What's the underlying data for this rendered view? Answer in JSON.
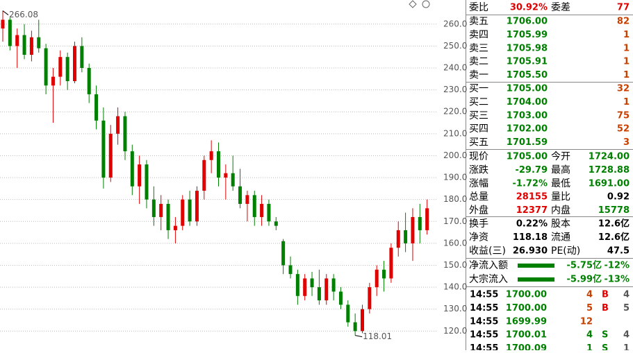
{
  "chart_data": {
    "type": "candlestick",
    "ylim": [
      116,
      271
    ],
    "yticks": [
      {
        "value": 120,
        "label": "120.0"
      },
      {
        "value": 130,
        "label": "130.0"
      },
      {
        "value": 140,
        "label": "140.0"
      },
      {
        "value": 150,
        "label": "150.0"
      },
      {
        "value": 160,
        "label": "160.0"
      },
      {
        "value": 170,
        "label": "170.0"
      },
      {
        "value": 180,
        "label": "180.0"
      },
      {
        "value": 190,
        "label": "190.0"
      },
      {
        "value": 200,
        "label": "200.0"
      },
      {
        "value": 210,
        "label": "210.0"
      },
      {
        "value": 220,
        "label": "220.0"
      },
      {
        "value": 230,
        "label": "230.0"
      },
      {
        "value": 240,
        "label": "240.0"
      },
      {
        "value": 250,
        "label": "250.0"
      },
      {
        "value": 260,
        "label": "260.0"
      }
    ],
    "grid": true,
    "up_color": "#e00000",
    "down_color": "#008000",
    "annotations": [
      "266.08",
      "118.01"
    ],
    "candles": [
      [
        258,
        266.08,
        252,
        262
      ],
      [
        262,
        263,
        248,
        250
      ],
      [
        250,
        258,
        240,
        255
      ],
      [
        255,
        260,
        244,
        246
      ],
      [
        246,
        257,
        243,
        254
      ],
      [
        254,
        262,
        247,
        249
      ],
      [
        249,
        251,
        228,
        232
      ],
      [
        232,
        240,
        215,
        236
      ],
      [
        236,
        248,
        232,
        245
      ],
      [
        245,
        247,
        230,
        234
      ],
      [
        234,
        252,
        233,
        250
      ],
      [
        250,
        254,
        238,
        240
      ],
      [
        240,
        242,
        224,
        228
      ],
      [
        228,
        232,
        212,
        216
      ],
      [
        216,
        222,
        185,
        190
      ],
      [
        190,
        214,
        188,
        210
      ],
      [
        210,
        222,
        205,
        218
      ],
      [
        218,
        220,
        198,
        202
      ],
      [
        202,
        205,
        182,
        186
      ],
      [
        186,
        200,
        178,
        196
      ],
      [
        196,
        198,
        176,
        180
      ],
      [
        180,
        186,
        168,
        172
      ],
      [
        172,
        182,
        166,
        178
      ],
      [
        178,
        180,
        162,
        166
      ],
      [
        166,
        172,
        160,
        168
      ],
      [
        168,
        182,
        166,
        180
      ],
      [
        180,
        184,
        168,
        170
      ],
      [
        170,
        186,
        168,
        184
      ],
      [
        184,
        200,
        180,
        198
      ],
      [
        198,
        207,
        192,
        202
      ],
      [
        202,
        206,
        186,
        190
      ],
      [
        190,
        196,
        180,
        192
      ],
      [
        192,
        200,
        184,
        186
      ],
      [
        186,
        194,
        176,
        178
      ],
      [
        178,
        184,
        170,
        182
      ],
      [
        182,
        184,
        168,
        172
      ],
      [
        172,
        182,
        168,
        178
      ],
      [
        178,
        180,
        168,
        170
      ],
      [
        170,
        172,
        166,
        168
      ],
      [
        161,
        162,
        146,
        150
      ],
      [
        150,
        154,
        144,
        146
      ],
      [
        146,
        148,
        132,
        136
      ],
      [
        136,
        146,
        134,
        144
      ],
      [
        144,
        147,
        136,
        140
      ],
      [
        140,
        148,
        132,
        134
      ],
      [
        134,
        146,
        132,
        144
      ],
      [
        144,
        146,
        134,
        138
      ],
      [
        138,
        140,
        130,
        132
      ],
      [
        132,
        134,
        122,
        124
      ],
      [
        124,
        128,
        118.01,
        120
      ],
      [
        120,
        132,
        119,
        130
      ],
      [
        130,
        142,
        128,
        140
      ],
      [
        140,
        150,
        136,
        148
      ],
      [
        148,
        152,
        138,
        144
      ],
      [
        144,
        160,
        142,
        158
      ],
      [
        158,
        170,
        154,
        166
      ],
      [
        166,
        174,
        156,
        160
      ],
      [
        160,
        176,
        152,
        172
      ],
      [
        172,
        178,
        160,
        166
      ],
      [
        166,
        180,
        164,
        176
      ]
    ]
  },
  "summary": [
    "委比",
    "30.92%",
    "委差",
    "77"
  ],
  "asks": [
    [
      "卖五",
      "1706.00",
      "82"
    ],
    [
      "卖四",
      "1705.99",
      "1"
    ],
    [
      "卖三",
      "1705.98",
      "1"
    ],
    [
      "卖二",
      "1705.91",
      "1"
    ],
    [
      "卖一",
      "1705.50",
      "1"
    ]
  ],
  "bids": [
    [
      "买一",
      "1705.00",
      "32"
    ],
    [
      "买二",
      "1704.00",
      "1"
    ],
    [
      "买三",
      "1703.00",
      "75"
    ],
    [
      "买四",
      "1702.00",
      "52"
    ],
    [
      "买五",
      "1701.59",
      "3"
    ]
  ],
  "stats": [
    [
      "现价",
      "1705.00",
      "今开",
      "1724.00"
    ],
    [
      "涨跌",
      "-29.79",
      "最高",
      "1728.88"
    ],
    [
      "涨幅",
      "-1.72%",
      "最低",
      "1691.00"
    ],
    [
      "总量",
      "28155",
      "量比",
      "0.92"
    ],
    [
      "外盘",
      "12377",
      "内盘",
      "15778"
    ]
  ],
  "finance": [
    [
      "换手",
      "0.22%",
      "股本",
      "12.6亿"
    ],
    [
      "净资",
      "118.18",
      "流通",
      "12.6亿"
    ],
    [
      "收益(三)",
      "26.930",
      "PE(动)",
      "47.5"
    ]
  ],
  "fund_flow": [
    [
      "净流入额",
      "-5.75亿",
      "-12%"
    ],
    [
      "大宗流入",
      "-5.99亿",
      "-13%"
    ]
  ],
  "trades": [
    [
      "14:55",
      "1700.00",
      "4",
      "B",
      "4"
    ],
    [
      "14:55",
      "1700.00",
      "5",
      "B",
      "5"
    ],
    [
      "14:55",
      "1699.99",
      "12",
      "",
      ""
    ],
    [
      "14:55",
      "1700.01",
      "4",
      "S",
      "4"
    ],
    [
      "14:55",
      "1700.09",
      "1",
      "S",
      "1"
    ]
  ]
}
